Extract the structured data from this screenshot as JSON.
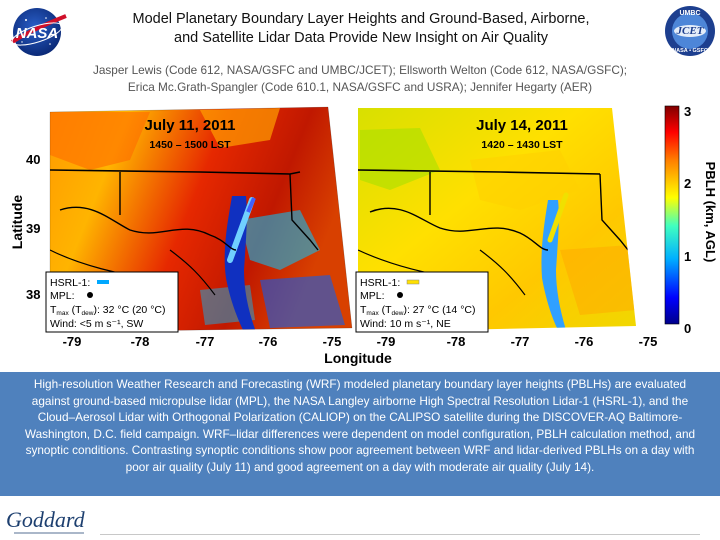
{
  "header": {
    "title_line1": "Model Planetary Boundary Layer Heights and Ground-Based, Airborne,",
    "title_line2": "and Satellite Lidar Data Provide New Insight on Air Quality",
    "authors_line1": "Jasper Lewis (Code 612, NASA/GSFC and UMBC/JCET); Ellsworth Welton (Code 612, NASA/GSFC);",
    "authors_line2": "Erica Mc.Grath-Spangler (Code 610.1, NASA/GSFC and USRA); Jennifer Hegarty (AER)"
  },
  "logos": {
    "nasa": "NASA",
    "jcet_top": "UMBC",
    "jcet_mid": "JCET",
    "jcet_bottom": "NASA • GSFC"
  },
  "figure": {
    "left_panel": {
      "date": "July 11, 2011",
      "time": "1450 – 1500 LST",
      "legend": {
        "hsrl": "HSRL-1:",
        "mpl": "MPL:",
        "t_main": "T",
        "t_sub": "max",
        "t_mid": " (T",
        "t_sub2": "dew",
        "t_end": "): 32 °C (20 °C)",
        "wind": "Wind: <5 m s⁻¹, SW"
      },
      "x_ticks": [
        "-79",
        "-78",
        "-77",
        "-76",
        "-75"
      ]
    },
    "right_panel": {
      "date": "July 14, 2011",
      "time": "1420 – 1430 LST",
      "legend": {
        "hsrl": "HSRL-1:",
        "mpl": "MPL:",
        "t_main": "T",
        "t_sub": "max",
        "t_mid": " (T",
        "t_sub2": "dew",
        "t_end": "): 27 °C (14 °C)",
        "wind": "Wind: 10 m s⁻¹, NE"
      },
      "x_ticks": [
        "-79",
        "-78",
        "-77",
        "-76",
        "-75"
      ]
    },
    "y_label": "Latitude",
    "y_ticks": [
      "40",
      "39",
      "38"
    ],
    "x_label": "Longitude",
    "colorbar_label": "PBLH (km, AGL)",
    "colorbar_ticks": [
      "3",
      "2",
      "1",
      "0"
    ],
    "colors": {
      "low": "#1010c0",
      "mid": "#ffd400",
      "high": "#c80000"
    }
  },
  "caption": {
    "text": "High-resolution Weather Research and Forecasting (WRF) modeled planetary boundary layer heights (PBLHs) are evaluated against ground-based micropulse lidar (MPL), the NASA Langley airborne High Spectral Resolution Lidar-1 (HSRL-1), and the Cloud–Aerosol Lidar with Orthogonal Polarization (CALIOP) on the CALIPSO satellite during the DISCOVER-AQ Baltimore-Washington, D.C. field campaign. WRF–lidar differences were dependent on model configuration, PBLH calculation method, and synoptic conditions. Contrasting synoptic conditions show poor agreement between WRF and lidar-derived PBLHs on a day with poor air quality (July 11) and good agreement on a day with moderate air quality (July 14)."
  },
  "footer": {
    "logo_text": "Goddard"
  }
}
